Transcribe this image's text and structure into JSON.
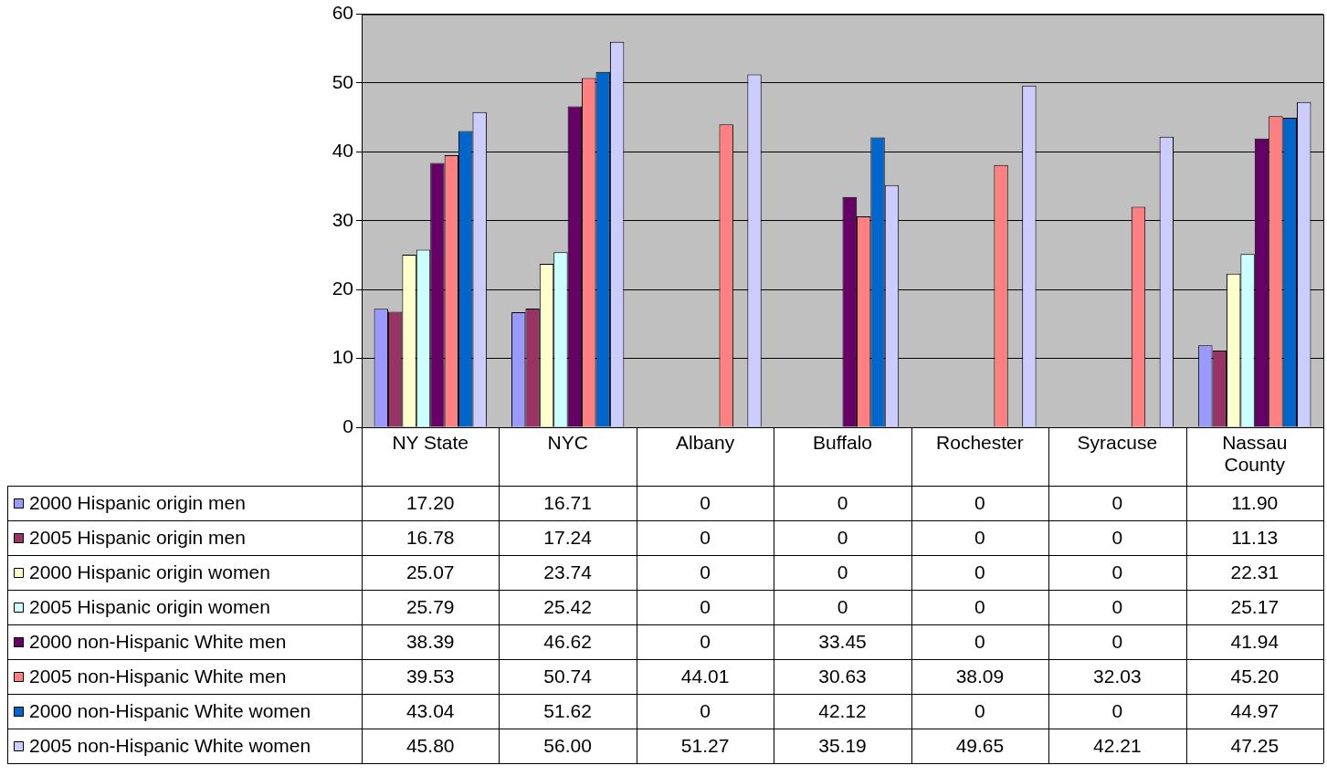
{
  "chart_data": {
    "type": "bar",
    "categories": [
      "NY State",
      "NYC",
      "Albany",
      "Buffalo",
      "Rochester",
      "Syracuse",
      "Nassau County"
    ],
    "series": [
      {
        "name": "2000 Hispanic origin men",
        "color": "#9999ff",
        "values": [
          17.2,
          16.71,
          0,
          0,
          0,
          0,
          11.9
        ],
        "value_labels": [
          "17.20",
          "16.71",
          "0",
          "0",
          "0",
          "0",
          "11.90"
        ]
      },
      {
        "name": "2005 Hispanic origin men",
        "color": "#993366",
        "values": [
          16.78,
          17.24,
          0,
          0,
          0,
          0,
          11.13
        ],
        "value_labels": [
          "16.78",
          "17.24",
          "0",
          "0",
          "0",
          "0",
          "11.13"
        ]
      },
      {
        "name": "2000 Hispanic origin women",
        "color": "#ffffcc",
        "values": [
          25.07,
          23.74,
          0,
          0,
          0,
          0,
          22.31
        ],
        "value_labels": [
          "25.07",
          "23.74",
          "0",
          "0",
          "0",
          "0",
          "22.31"
        ]
      },
      {
        "name": "2005 Hispanic origin women",
        "color": "#ccffff",
        "values": [
          25.79,
          25.42,
          0,
          0,
          0,
          0,
          25.17
        ],
        "value_labels": [
          "25.79",
          "25.42",
          "0",
          "0",
          "0",
          "0",
          "25.17"
        ]
      },
      {
        "name": "2000 non-Hispanic White men",
        "color": "#660066",
        "values": [
          38.39,
          46.62,
          0,
          33.45,
          0,
          0,
          41.94
        ],
        "value_labels": [
          "38.39",
          "46.62",
          "0",
          "33.45",
          "0",
          "0",
          "41.94"
        ]
      },
      {
        "name": "2005 non-Hispanic White men",
        "color": "#ff8080",
        "values": [
          39.53,
          50.74,
          44.01,
          30.63,
          38.09,
          32.03,
          45.2
        ],
        "value_labels": [
          "39.53",
          "50.74",
          "44.01",
          "30.63",
          "38.09",
          "32.03",
          "45.20"
        ]
      },
      {
        "name": "2000 non-Hispanic White women",
        "color": "#0066cc",
        "values": [
          43.04,
          51.62,
          0,
          42.12,
          0,
          0,
          44.97
        ],
        "value_labels": [
          "43.04",
          "51.62",
          "0",
          "42.12",
          "0",
          "0",
          "44.97"
        ]
      },
      {
        "name": "2005 non-Hispanic White women",
        "color": "#ccccff",
        "values": [
          45.8,
          56.0,
          51.27,
          35.19,
          49.65,
          42.21,
          47.25
        ],
        "value_labels": [
          "45.80",
          "56.00",
          "51.27",
          "35.19",
          "49.65",
          "42.21",
          "47.25"
        ]
      }
    ],
    "ylim": [
      0,
      60
    ],
    "yticks": [
      0,
      10,
      20,
      30,
      40,
      50,
      60
    ],
    "grid": "y",
    "legend": "left"
  }
}
